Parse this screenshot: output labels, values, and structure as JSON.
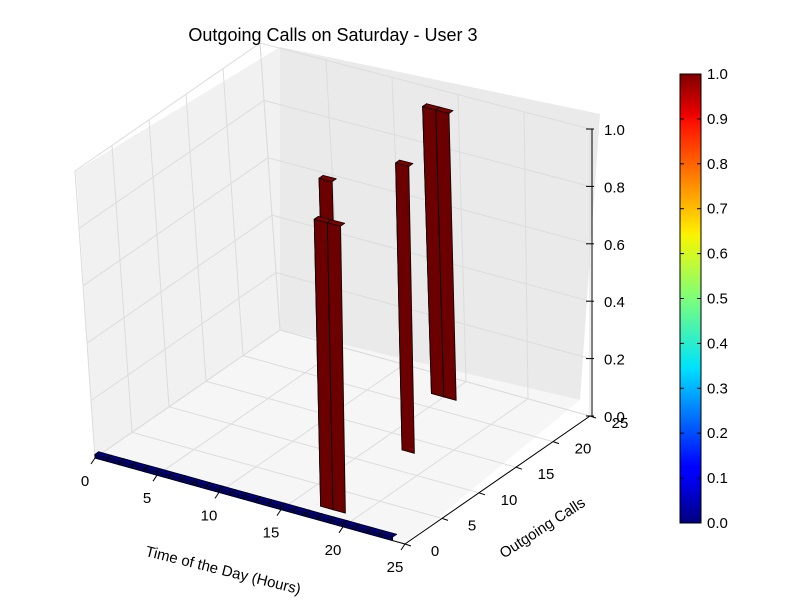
{
  "chart_data": {
    "type": "bar",
    "title": "Outgoing Calls on Saturday - User 3",
    "xlabel": "Time of the Day (Hours)",
    "ylabel": "Outgoing Calls",
    "zlabel": "",
    "x_ticks": [
      "0",
      "5",
      "10",
      "15",
      "20",
      "25"
    ],
    "y_ticks": [
      "0",
      "5",
      "10",
      "15",
      "20",
      "25"
    ],
    "z_ticks": [
      "0.0",
      "0.2",
      "0.4",
      "0.6",
      "0.8",
      "1.0"
    ],
    "xlim": [
      0,
      25
    ],
    "ylim": [
      0,
      25
    ],
    "zlim": [
      0,
      1
    ],
    "grid": true,
    "colormap": "jet",
    "colorbar_ticks": [
      "0.0",
      "0.1",
      "0.2",
      "0.3",
      "0.4",
      "0.5",
      "0.6",
      "0.7",
      "0.8",
      "0.9",
      "1.0"
    ],
    "colors": {
      "bar_high": "#800000",
      "bar_low": "#00007f",
      "pane_left": "#f1f1f1",
      "pane_back": "#eaeaea",
      "pane_floor": "#f6f6f6",
      "grid": "#dcdcdc"
    },
    "bars": [
      {
        "hour": 0,
        "calls": 0,
        "value": 0
      },
      {
        "hour": 1,
        "calls": 0,
        "value": 0
      },
      {
        "hour": 2,
        "calls": 0,
        "value": 0
      },
      {
        "hour": 3,
        "calls": 0,
        "value": 0
      },
      {
        "hour": 4,
        "calls": 0,
        "value": 0
      },
      {
        "hour": 5,
        "calls": 0,
        "value": 0
      },
      {
        "hour": 6,
        "calls": 0,
        "value": 0
      },
      {
        "hour": 7,
        "calls": 0,
        "value": 0
      },
      {
        "hour": 8,
        "calls": 0,
        "value": 0
      },
      {
        "hour": 9,
        "calls": 0,
        "value": 0
      },
      {
        "hour": 10,
        "calls": 0,
        "value": 0
      },
      {
        "hour": 11,
        "calls": 0,
        "value": 0
      },
      {
        "hour": 12,
        "calls": 0,
        "value": 0
      },
      {
        "hour": 13,
        "calls": 0,
        "value": 0
      },
      {
        "hour": 14,
        "calls": 0,
        "value": 0
      },
      {
        "hour": 15,
        "calls": 0,
        "value": 0
      },
      {
        "hour": 16,
        "calls": 0,
        "value": 0
      },
      {
        "hour": 17,
        "calls": 0,
        "value": 0
      },
      {
        "hour": 18,
        "calls": 0,
        "value": 0
      },
      {
        "hour": 19,
        "calls": 0,
        "value": 0
      },
      {
        "hour": 20,
        "calls": 0,
        "value": 0
      },
      {
        "hour": 21,
        "calls": 0,
        "value": 0
      },
      {
        "hour": 22,
        "calls": 0,
        "value": 0
      },
      {
        "hour": 23,
        "calls": 0,
        "value": 0
      },
      {
        "hour": 14,
        "calls": 8,
        "value": 1
      },
      {
        "hour": 17,
        "calls": 2,
        "value": 1
      },
      {
        "hour": 18,
        "calls": 2,
        "value": 1
      },
      {
        "hour": 17,
        "calls": 13,
        "value": 1
      },
      {
        "hour": 14,
        "calls": 22,
        "value": 1
      },
      {
        "hour": 15,
        "calls": 22,
        "value": 1
      }
    ]
  }
}
